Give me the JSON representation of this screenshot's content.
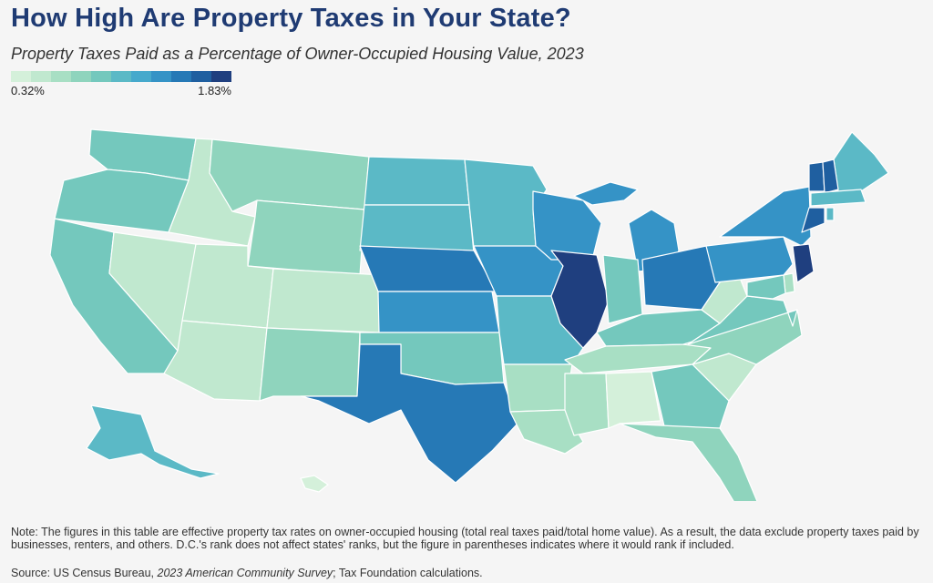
{
  "header": {
    "title": "How High Are Property Taxes in Your State?",
    "subtitle": "Property Taxes Paid as a Percentage of Owner-Occupied Housing Value, 2023"
  },
  "legend": {
    "min_label": "0.32%",
    "max_label": "1.83%",
    "colors": [
      "#d4f0da",
      "#c0e8cf",
      "#a8dfc4",
      "#8fd4bd",
      "#74c8bd",
      "#5bb9c6",
      "#46a9cc",
      "#3593c6",
      "#2679b6",
      "#1f5fa0",
      "#1f3f7f"
    ]
  },
  "footer": {
    "note": "Note: The figures in this table are effective property tax rates on owner-occupied housing (total real taxes paid/total home value). As a result, the data exclude property taxes paid by businesses, renters, and others. D.C.'s rank does not affect states' ranks, but the figure in parentheses indicates where it would rank if included.",
    "source_prefix": "Source: US Census Bureau, ",
    "source_italic": "2023 American Community Survey",
    "source_suffix": "; Tax Foundation calculations."
  },
  "chart_data": {
    "type": "choropleth",
    "value_range": [
      0.32,
      1.83
    ],
    "states": [
      {
        "name": "WA",
        "level": 4
      },
      {
        "name": "OR",
        "level": 4
      },
      {
        "name": "CA",
        "level": 4
      },
      {
        "name": "NV",
        "level": 1
      },
      {
        "name": "ID",
        "level": 1
      },
      {
        "name": "MT",
        "level": 3
      },
      {
        "name": "WY",
        "level": 3
      },
      {
        "name": "UT",
        "level": 1
      },
      {
        "name": "AZ",
        "level": 1
      },
      {
        "name": "CO",
        "level": 1
      },
      {
        "name": "NM",
        "level": 3
      },
      {
        "name": "ND",
        "level": 5
      },
      {
        "name": "SD",
        "level": 5
      },
      {
        "name": "NE",
        "level": 8
      },
      {
        "name": "KS",
        "level": 7
      },
      {
        "name": "OK",
        "level": 4
      },
      {
        "name": "TX",
        "level": 8
      },
      {
        "name": "MN",
        "level": 5
      },
      {
        "name": "IA",
        "level": 7
      },
      {
        "name": "MO",
        "level": 5
      },
      {
        "name": "AR",
        "level": 2
      },
      {
        "name": "LA",
        "level": 2
      },
      {
        "name": "WI",
        "level": 7
      },
      {
        "name": "IL",
        "level": 10
      },
      {
        "name": "MI",
        "level": 7
      },
      {
        "name": "IN",
        "level": 4
      },
      {
        "name": "OH",
        "level": 8
      },
      {
        "name": "KY",
        "level": 4
      },
      {
        "name": "TN",
        "level": 2
      },
      {
        "name": "MS",
        "level": 2
      },
      {
        "name": "AL",
        "level": 0
      },
      {
        "name": "GA",
        "level": 4
      },
      {
        "name": "FL",
        "level": 3
      },
      {
        "name": "SC",
        "level": 1
      },
      {
        "name": "NC",
        "level": 3
      },
      {
        "name": "VA",
        "level": 4
      },
      {
        "name": "WV",
        "level": 1
      },
      {
        "name": "PA",
        "level": 7
      },
      {
        "name": "NY",
        "level": 7
      },
      {
        "name": "ME",
        "level": 5
      },
      {
        "name": "VT",
        "level": 9
      },
      {
        "name": "NH",
        "level": 9
      },
      {
        "name": "MA",
        "level": 5
      },
      {
        "name": "CT",
        "level": 9
      },
      {
        "name": "RI",
        "level": 5
      },
      {
        "name": "NJ",
        "level": 10
      },
      {
        "name": "DE",
        "level": 2
      },
      {
        "name": "MD",
        "level": 4
      },
      {
        "name": "AK",
        "level": 5
      },
      {
        "name": "HI",
        "level": 0
      }
    ]
  }
}
